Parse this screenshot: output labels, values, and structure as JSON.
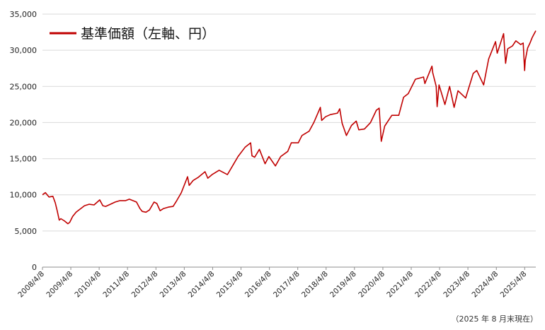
{
  "chart_data": {
    "type": "line",
    "legend": "基準価額（左軸、円）",
    "line_color": "#c00000",
    "legend_position": "top-left",
    "grid": "horizontal",
    "ylim": [
      0,
      35000
    ],
    "yticks": [
      {
        "value": 35000,
        "label": "35,000"
      },
      {
        "value": 30000,
        "label": "30,000"
      },
      {
        "value": 25000,
        "label": "25,000"
      },
      {
        "value": 20000,
        "label": "20,000"
      },
      {
        "value": 15000,
        "label": "15,000"
      },
      {
        "value": 10000,
        "label": "10,000"
      },
      {
        "value": 5000,
        "label": "5,000"
      },
      {
        "value": 0,
        "label": "0"
      }
    ],
    "xlim": [
      "2008-04-08",
      "2025-08-29"
    ],
    "xticks": [
      {
        "date": "2008-04-08",
        "label": "2008/4/8"
      },
      {
        "date": "2009-04-08",
        "label": "2009/4/8"
      },
      {
        "date": "2010-04-08",
        "label": "2010/4/8"
      },
      {
        "date": "2011-04-08",
        "label": "2011/4/8"
      },
      {
        "date": "2012-04-08",
        "label": "2012/4/8"
      },
      {
        "date": "2013-04-08",
        "label": "2013/4/8"
      },
      {
        "date": "2014-04-08",
        "label": "2014/4/8"
      },
      {
        "date": "2015-04-08",
        "label": "2015/4/8"
      },
      {
        "date": "2016-04-08",
        "label": "2016/4/8"
      },
      {
        "date": "2017-04-08",
        "label": "2017/4/8"
      },
      {
        "date": "2018-04-08",
        "label": "2018/4/8"
      },
      {
        "date": "2019-04-08",
        "label": "2019/4/8"
      },
      {
        "date": "2020-04-08",
        "label": "2020/4/8"
      },
      {
        "date": "2021-04-08",
        "label": "2021/4/8"
      },
      {
        "date": "2022-04-08",
        "label": "2022/4/8"
      },
      {
        "date": "2023-04-08",
        "label": "2023/4/8"
      },
      {
        "date": "2024-04-08",
        "label": "2024/4/8"
      },
      {
        "date": "2025-04-08",
        "label": "2025/4/8"
      }
    ],
    "series": [
      {
        "points": [
          [
            "2008-04-08",
            10000
          ],
          [
            "2008-05-15",
            10300
          ],
          [
            "2008-07-01",
            9700
          ],
          [
            "2008-08-20",
            9800
          ],
          [
            "2008-09-20",
            8900
          ],
          [
            "2008-10-15",
            7800
          ],
          [
            "2008-11-10",
            6500
          ],
          [
            "2008-12-01",
            6700
          ],
          [
            "2009-01-15",
            6400
          ],
          [
            "2009-03-01",
            6000
          ],
          [
            "2009-03-25",
            6200
          ],
          [
            "2009-05-01",
            7000
          ],
          [
            "2009-06-15",
            7600
          ],
          [
            "2009-08-01",
            8000
          ],
          [
            "2009-10-01",
            8500
          ],
          [
            "2009-12-01",
            8700
          ],
          [
            "2010-02-01",
            8600
          ],
          [
            "2010-04-15",
            9300
          ],
          [
            "2010-05-25",
            8500
          ],
          [
            "2010-07-01",
            8400
          ],
          [
            "2010-09-01",
            8700
          ],
          [
            "2010-11-01",
            9000
          ],
          [
            "2011-01-01",
            9200
          ],
          [
            "2011-03-15",
            9200
          ],
          [
            "2011-05-01",
            9400
          ],
          [
            "2011-08-01",
            9000
          ],
          [
            "2011-09-15",
            8100
          ],
          [
            "2011-10-15",
            7700
          ],
          [
            "2011-12-01",
            7600
          ],
          [
            "2012-01-15",
            7900
          ],
          [
            "2012-03-15",
            9000
          ],
          [
            "2012-04-20",
            8800
          ],
          [
            "2012-06-01",
            7800
          ],
          [
            "2012-07-15",
            8100
          ],
          [
            "2012-09-15",
            8300
          ],
          [
            "2012-11-15",
            8400
          ],
          [
            "2013-01-01",
            9200
          ],
          [
            "2013-03-01",
            10300
          ],
          [
            "2013-05-20",
            12500
          ],
          [
            "2013-06-10",
            11300
          ],
          [
            "2013-08-01",
            12000
          ],
          [
            "2013-10-01",
            12400
          ],
          [
            "2013-12-31",
            13200
          ],
          [
            "2014-02-05",
            12300
          ],
          [
            "2014-04-01",
            12800
          ],
          [
            "2014-07-01",
            13400
          ],
          [
            "2014-10-15",
            12800
          ],
          [
            "2014-12-31",
            14200
          ],
          [
            "2015-03-01",
            15300
          ],
          [
            "2015-06-01",
            16600
          ],
          [
            "2015-08-10",
            17200
          ],
          [
            "2015-08-28",
            15400
          ],
          [
            "2015-10-01",
            15200
          ],
          [
            "2015-12-01",
            16300
          ],
          [
            "2016-02-12",
            14300
          ],
          [
            "2016-04-01",
            15300
          ],
          [
            "2016-06-24",
            14000
          ],
          [
            "2016-09-01",
            15300
          ],
          [
            "2016-11-30",
            16000
          ],
          [
            "2017-01-15",
            17200
          ],
          [
            "2017-04-15",
            17200
          ],
          [
            "2017-06-01",
            18200
          ],
          [
            "2017-09-01",
            18800
          ],
          [
            "2017-11-01",
            20000
          ],
          [
            "2018-01-24",
            22100
          ],
          [
            "2018-02-10",
            20300
          ],
          [
            "2018-04-01",
            20800
          ],
          [
            "2018-06-01",
            21100
          ],
          [
            "2018-09-01",
            21300
          ],
          [
            "2018-10-01",
            21900
          ],
          [
            "2018-11-01",
            19900
          ],
          [
            "2018-12-25",
            18200
          ],
          [
            "2019-03-01",
            19600
          ],
          [
            "2019-05-01",
            20200
          ],
          [
            "2019-06-03",
            19000
          ],
          [
            "2019-08-15",
            19100
          ],
          [
            "2019-11-01",
            20000
          ],
          [
            "2020-01-15",
            21700
          ],
          [
            "2020-02-20",
            22000
          ],
          [
            "2020-03-19",
            17400
          ],
          [
            "2020-05-01",
            19500
          ],
          [
            "2020-08-01",
            21000
          ],
          [
            "2020-10-30",
            21000
          ],
          [
            "2020-12-31",
            23500
          ],
          [
            "2021-03-01",
            24000
          ],
          [
            "2021-06-01",
            26000
          ],
          [
            "2021-09-14",
            26300
          ],
          [
            "2021-10-01",
            25400
          ],
          [
            "2021-12-31",
            27800
          ],
          [
            "2022-01-10",
            26900
          ],
          [
            "2022-02-24",
            25000
          ],
          [
            "2022-03-08",
            22200
          ],
          [
            "2022-04-01",
            25200
          ],
          [
            "2022-06-16",
            22500
          ],
          [
            "2022-08-15",
            25000
          ],
          [
            "2022-10-12",
            22100
          ],
          [
            "2022-12-01",
            24400
          ],
          [
            "2023-03-10",
            23400
          ],
          [
            "2023-06-15",
            26800
          ],
          [
            "2023-07-31",
            27200
          ],
          [
            "2023-10-27",
            25200
          ],
          [
            "2023-12-31",
            28800
          ],
          [
            "2024-03-28",
            31200
          ],
          [
            "2024-04-19",
            29600
          ],
          [
            "2024-07-10",
            32300
          ],
          [
            "2024-08-05",
            28200
          ],
          [
            "2024-09-01",
            30200
          ],
          [
            "2024-11-01",
            30600
          ],
          [
            "2024-12-15",
            31300
          ],
          [
            "2025-02-15",
            30800
          ],
          [
            "2025-03-20",
            31000
          ],
          [
            "2025-04-07",
            27200
          ],
          [
            "2025-04-15",
            28600
          ],
          [
            "2025-05-15",
            30300
          ],
          [
            "2025-06-15",
            31000
          ],
          [
            "2025-07-15",
            31800
          ],
          [
            "2025-08-29",
            32700
          ]
        ]
      }
    ]
  },
  "note": "（2025 年 8 月末現在）"
}
